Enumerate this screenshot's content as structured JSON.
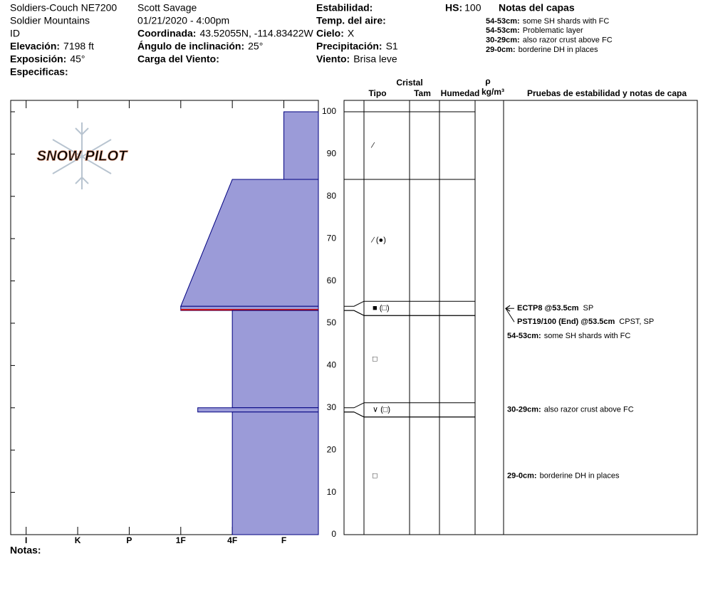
{
  "header": {
    "columns": [
      [
        {
          "text": "Soldiers-Couch NE7200"
        },
        {
          "text": "Soldier Mountains"
        },
        {
          "text": "ID"
        },
        {
          "label": "Elevación:",
          "value": "7198 ft"
        },
        {
          "label": "Exposición:",
          "value": "45°"
        },
        {
          "label": "Especificas:"
        }
      ],
      [
        {
          "text": "Scott Savage"
        },
        {
          "text": "01/21/2020 - 4:00pm"
        },
        {
          "label": "Coordinada:",
          "value": "43.52055N, -114.83422W"
        },
        {
          "label": "Ángulo de inclinación:",
          "value": "25°"
        },
        {
          "label": "Carga del Viento:"
        }
      ],
      [
        {
          "label": "Estabilidad:"
        },
        {
          "label": "Temp. del aire:"
        },
        {
          "label": "Cielo:",
          "value": "X"
        },
        {
          "label": "Precipitación:",
          "value": "S1"
        },
        {
          "label": "Viento:",
          "value": "Brisa leve"
        }
      ]
    ],
    "hs": {
      "label": "HS:",
      "value": 100
    },
    "notes_title": "Notas del capas",
    "notes": [
      {
        "range": "54-53cm:",
        "text": "some SH shards with FC"
      },
      {
        "range": "54-53cm:",
        "text": "Problematic layer"
      },
      {
        "range": "30-29cm:",
        "text": "also razor crust above FC"
      },
      {
        "range": "29-0cm:",
        "text": "borderine DH in places"
      }
    ]
  },
  "chart_data": {
    "type": "snow-profile",
    "logo": "SNOW PILOT",
    "ylim": [
      0,
      100
    ],
    "yticks": [
      0,
      10,
      20,
      30,
      40,
      50,
      60,
      70,
      80,
      90,
      100
    ],
    "xlim": [
      0.7,
      6.67
    ],
    "xticks": [
      {
        "value": 1,
        "label": "I"
      },
      {
        "value": 2,
        "label": "K"
      },
      {
        "value": 3,
        "label": "P"
      },
      {
        "value": 4,
        "label": "1F"
      },
      {
        "value": 5,
        "label": "4F"
      },
      {
        "value": 6,
        "label": "F"
      }
    ],
    "color": "#9b9bd8",
    "edge_color": "#000080",
    "columns": {
      "crystal": "Cristal",
      "type": "Tipo",
      "size": "Tam",
      "moisture": "Humedad",
      "density": "ρ",
      "density_unit": "kg/m³",
      "tests": "Pruebas de estabilidad y notas de capa"
    },
    "layers": [
      {
        "top": 100,
        "bottom": 84,
        "hardness_top": 6,
        "hardness_bottom": 6,
        "grain": "∕"
      },
      {
        "top": 84,
        "bottom": 54,
        "hardness_top": 5,
        "hardness_bottom": 4,
        "grain": "∕ (●)"
      },
      {
        "top": 54,
        "bottom": 53,
        "hardness_top": 4,
        "hardness_bottom": 4,
        "grain": "■ (□)",
        "line_color": "#cc0000",
        "note": {
          "range": "54-53cm:",
          "text": "some SH shards with FC"
        }
      },
      {
        "top": 53,
        "bottom": 30,
        "hardness_top": 5,
        "hardness_bottom": 5,
        "grain": "□"
      },
      {
        "top": 30,
        "bottom": 29,
        "hardness_top": 4.33,
        "hardness_bottom": 4.33,
        "grain": "∨ (□)",
        "note": {
          "range": "30-29cm:",
          "text": "also razor crust above FC"
        }
      },
      {
        "top": 29,
        "bottom": 0,
        "hardness_top": 5,
        "hardness_bottom": 5,
        "grain": "□",
        "note": {
          "range": "29-0cm:",
          "text": "borderine DH in places"
        }
      }
    ],
    "tests": [
      {
        "depth": 53.5,
        "name": "ECTP8 @53.5cm",
        "note": "SP"
      },
      {
        "depth": 53.5,
        "name": "PST19/100 (End) @53.5cm",
        "note": "CPST, SP"
      }
    ],
    "footer": "Notas:"
  }
}
